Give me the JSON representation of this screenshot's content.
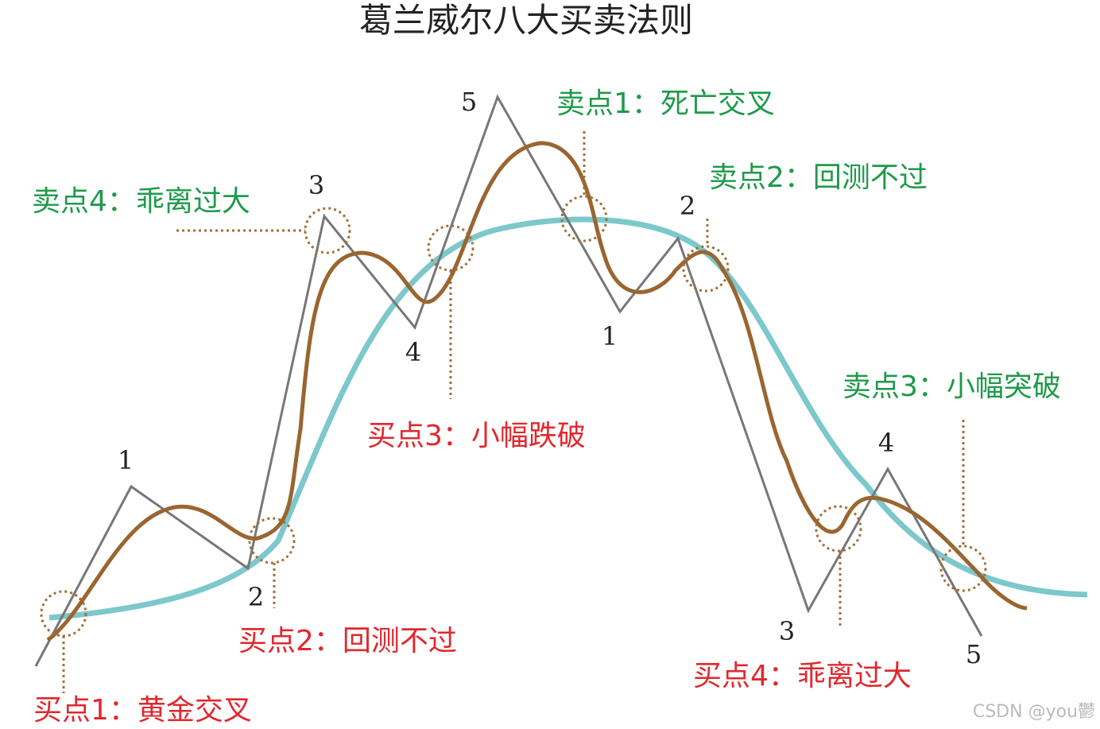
{
  "title": "葛兰威尔八大买卖法则",
  "sell_labels": [
    "卖点1：死亡交叉",
    "卖点2：回测不过",
    "卖点3：小幅突破",
    "卖点4：乖离过大"
  ],
  "buy_labels": [
    "买点1：黄金交叉",
    "买点2：回测不过",
    "买点3：小幅跌破",
    "买点4：乖离过大"
  ],
  "wave_numbers": [
    "1",
    "2",
    "3",
    "4",
    "5",
    "1",
    "2",
    "3",
    "4",
    "5"
  ],
  "watermark": "CSDN @you鬱"
}
